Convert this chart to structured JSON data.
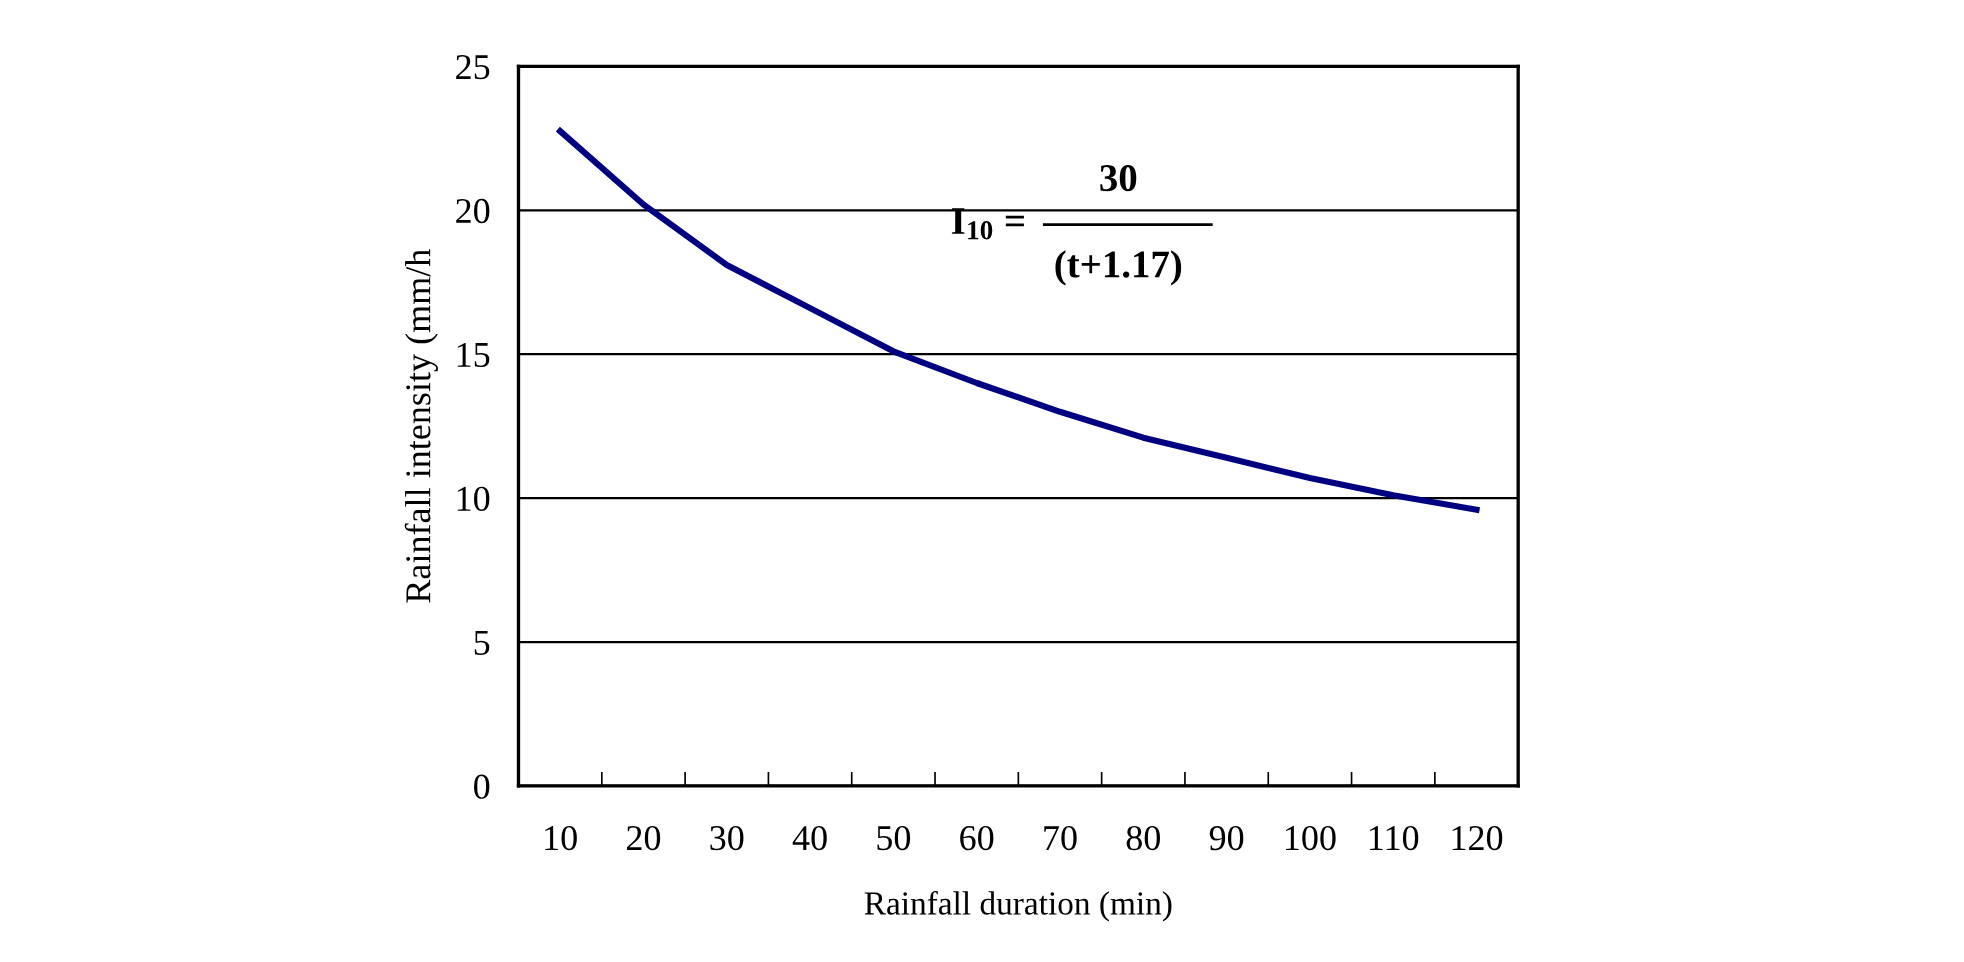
{
  "chart_data": {
    "type": "line",
    "xlabel": "Rainfall duration (min)",
    "ylabel": "Rainfall intensity (mm/h",
    "categories": [
      "10",
      "20",
      "30",
      "40",
      "50",
      "60",
      "70",
      "80",
      "90",
      "100",
      "110",
      "120"
    ],
    "series": [
      {
        "color": "#000080",
        "values": [
          22.75,
          20.2,
          18.1,
          16.6,
          15.1,
          14.0,
          13.0,
          12.1,
          11.4,
          10.7,
          10.1,
          9.6
        ]
      }
    ],
    "ylim": [
      0,
      25
    ],
    "yticks": [
      0,
      5,
      10,
      15,
      20,
      25
    ],
    "grid": "y",
    "marker": "none",
    "line_style": "solid",
    "annotations": [
      "I$_{10}$ =",
      "30",
      "(t+1.17)"
    ]
  }
}
